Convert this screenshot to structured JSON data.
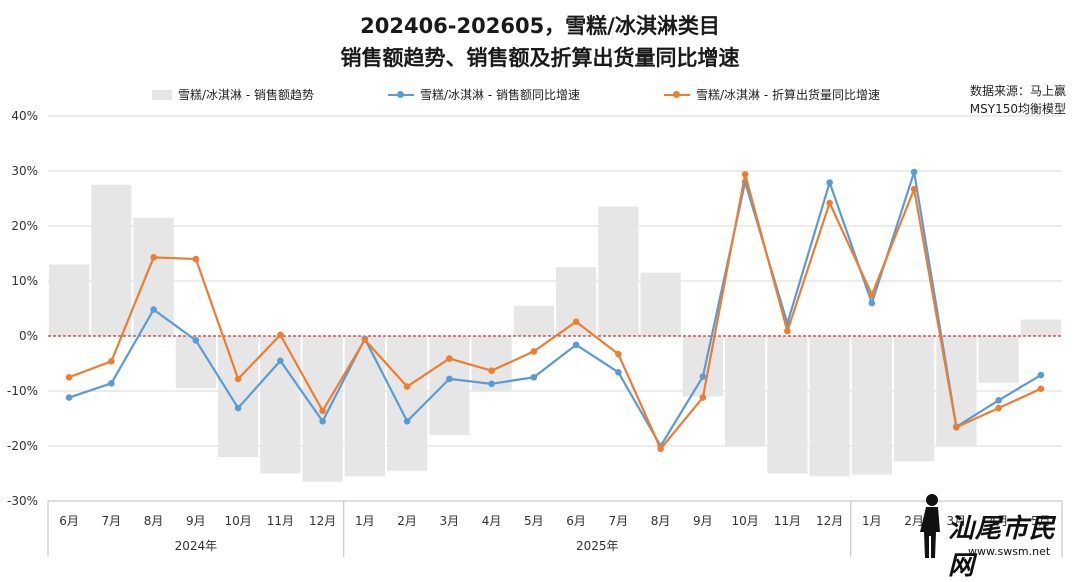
{
  "header": {
    "title_line1": "202406-202605，雪糕/冰淇淋类目",
    "title_line2": "销售额趋势、销售额及折算出货量同比增速"
  },
  "source": {
    "line1": "数据来源：马上赢",
    "line2": "MSY150均衡模型"
  },
  "watermark": {
    "text": "汕尾市民网",
    "url": "www.swsm.net"
  },
  "colors": {
    "bar": "#e6e6e6",
    "blue": "#5b9bd5",
    "orange": "#ed7d31",
    "zero_line": "#c00000"
  },
  "chart_data": {
    "type": "bar+line",
    "categories": [
      "6月",
      "7月",
      "8月",
      "9月",
      "10月",
      "11月",
      "12月",
      "1月",
      "2月",
      "3月",
      "4月",
      "5月",
      "6月",
      "7月",
      "8月",
      "9月",
      "10月",
      "11月",
      "12月",
      "1月",
      "2月",
      "3月",
      "4月",
      "5月"
    ],
    "year_groups": [
      {
        "label": "2024年",
        "start": 0,
        "end": 6
      },
      {
        "label": "2025年",
        "start": 7,
        "end": 18
      },
      {
        "label": "",
        "start": 19,
        "end": 23
      }
    ],
    "ylim": [
      -30,
      40
    ],
    "yticks": [
      -30,
      -20,
      -10,
      0,
      10,
      20,
      30,
      40
    ],
    "ytick_labels": [
      "-30%",
      "-20%",
      "-10%",
      "0%",
      "10%",
      "20%",
      "30%",
      "40%"
    ],
    "series": [
      {
        "name": "雪糕/冰淇淋 - 销售额趋势",
        "kind": "bar",
        "values": [
          13,
          27.5,
          21.5,
          -9.5,
          -22,
          -25,
          -26.5,
          -25.5,
          -24.5,
          -18,
          -10,
          5.5,
          12.5,
          23.5,
          11.5,
          -11,
          -20,
          -25,
          -25.5,
          -25.2,
          -22.8,
          -20,
          -8.5,
          3
        ]
      },
      {
        "name": "雪糕/冰淇淋 - 销售额同比增速",
        "kind": "line",
        "values": [
          -11.2,
          -8.6,
          4.8,
          -0.8,
          -13.1,
          -4.5,
          -15.5,
          -0.5,
          -15.5,
          -7.8,
          -8.7,
          -7.5,
          -1.6,
          -6.6,
          -20,
          -7.4,
          28,
          2.3,
          27.9,
          6,
          29.8,
          -16.5,
          -11.7,
          -7.1
        ]
      },
      {
        "name": "雪糕/冰淇淋 - 折算出货量同比增速",
        "kind": "line",
        "values": [
          -7.5,
          -4.6,
          14.3,
          14,
          -7.8,
          0.2,
          -13.6,
          -0.7,
          -9.2,
          -4.1,
          -6.3,
          -2.8,
          2.6,
          -3.3,
          -20.5,
          -11.2,
          29.4,
          0.9,
          24.2,
          7.5,
          26.7,
          -16.6,
          -13.1,
          -9.6
        ]
      }
    ]
  }
}
